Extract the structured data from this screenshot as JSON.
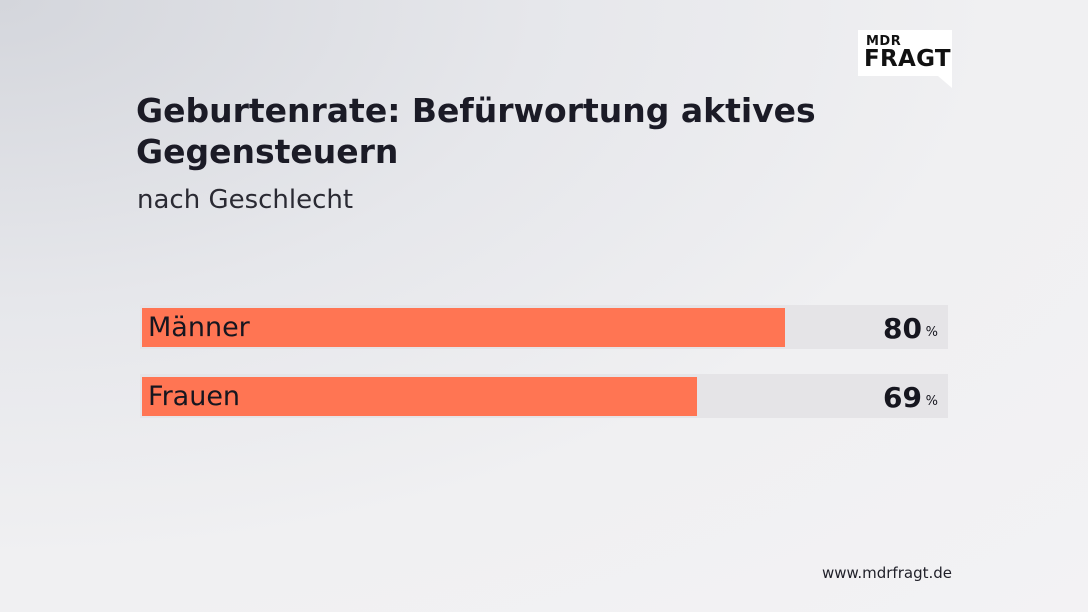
{
  "logo": {
    "line1": "MDR",
    "line2": "FRAGT"
  },
  "chart_data": {
    "type": "bar",
    "orientation": "horizontal",
    "title": "Geburtenrate: Befürwortung aktives Gegensteuern",
    "subtitle": "nach Geschlecht",
    "categories": [
      "Männer",
      "Frauen"
    ],
    "values": [
      80,
      69
    ],
    "value_labels": [
      "80",
      "69"
    ],
    "unit": "%",
    "xlim": [
      0,
      100
    ],
    "colors": {
      "bar": "#ff7553",
      "track": "#e5e4e7"
    },
    "grid": false,
    "legend": "none"
  },
  "footer": {
    "source": "www.mdrfragt.de"
  }
}
